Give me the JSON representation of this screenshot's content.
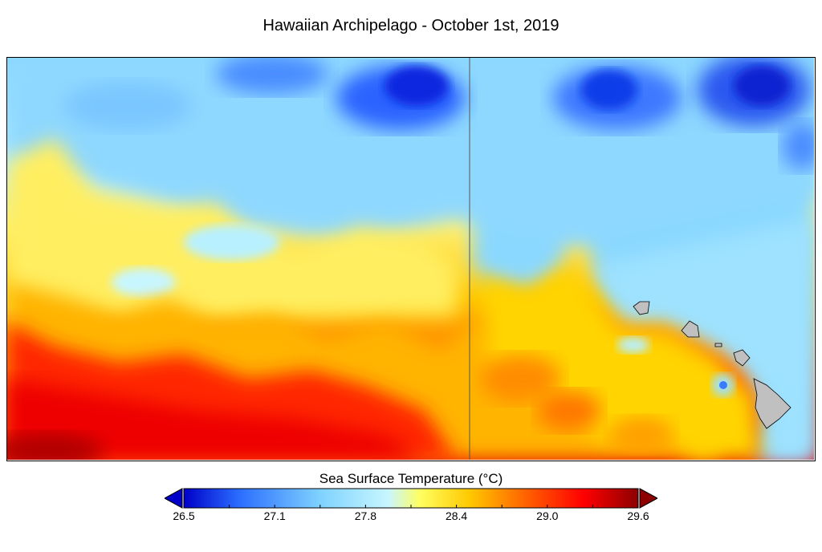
{
  "title": "Hawaiian Archipelago - October 1st, 2019",
  "colorbar": {
    "title": "Sea Surface Temperature (°C)",
    "min": 26.5,
    "max": 29.6,
    "labels": [
      "26.5",
      "27.1",
      "27.8",
      "28.4",
      "29.0",
      "29.6"
    ],
    "colors": [
      "#0000c8",
      "#2a6cff",
      "#7ed2ff",
      "#c8f6ff",
      "#ffff60",
      "#ffc800",
      "#ff6400",
      "#ff0000",
      "#8c0000"
    ],
    "extend": "both"
  },
  "map": {
    "region": "Hawaiian Archipelago",
    "land_color": "#c0c0c0",
    "islands": [
      "Oahu",
      "Molokai",
      "Maui",
      "Kahoolawe",
      "Hawaii"
    ]
  }
}
